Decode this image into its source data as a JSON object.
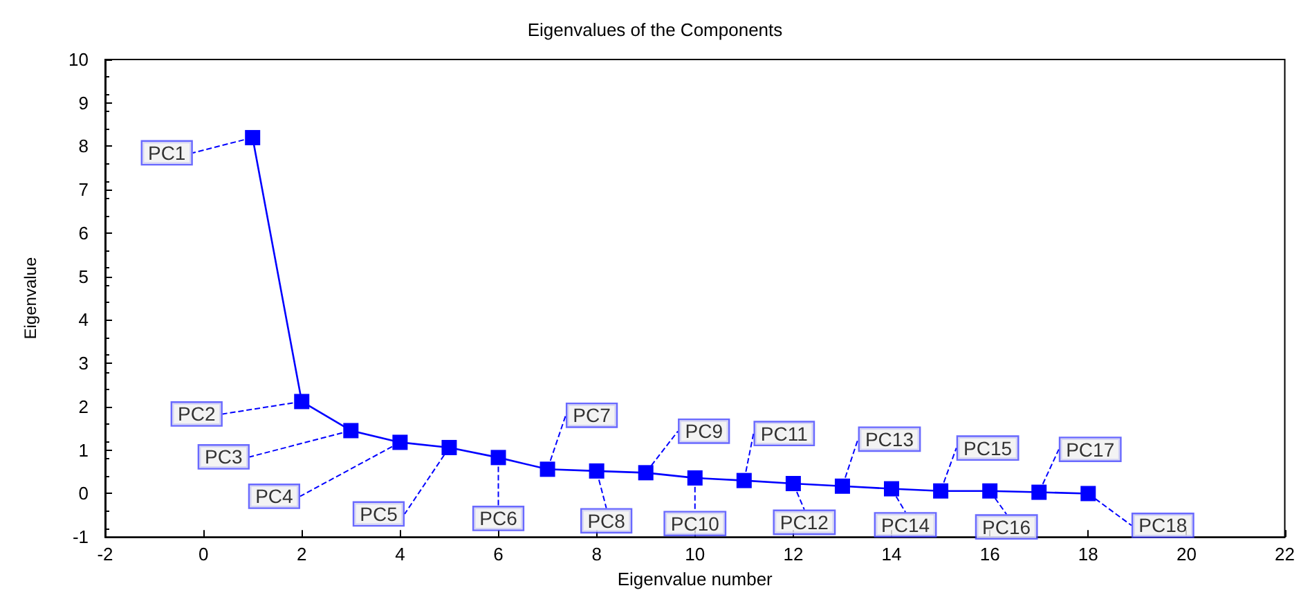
{
  "chart_data": {
    "type": "line",
    "title": "Eigenvalues of the Components",
    "xlabel": "Eigenvalue number",
    "ylabel": "Eigenvalue",
    "x": [
      1,
      2,
      3,
      4,
      5,
      6,
      7,
      8,
      9,
      10,
      11,
      12,
      13,
      14,
      15,
      16,
      17,
      18
    ],
    "series": [
      {
        "color": "#0000ff",
        "values": [
          8.2,
          2.12,
          1.45,
          1.18,
          1.06,
          0.83,
          0.56,
          0.52,
          0.48,
          0.36,
          0.3,
          0.23,
          0.17,
          0.11,
          0.06,
          0.06,
          0.03,
          0.0
        ]
      }
    ],
    "annotations": [
      {
        "text": "PC1",
        "x": 1,
        "y": 8.2
      },
      {
        "text": "PC2",
        "x": 2,
        "y": 2.12
      },
      {
        "text": "PC3",
        "x": 3,
        "y": 1.45
      },
      {
        "text": "PC4",
        "x": 4,
        "y": 1.18
      },
      {
        "text": "PC5",
        "x": 5,
        "y": 1.06
      },
      {
        "text": "PC6",
        "x": 6,
        "y": 0.83
      },
      {
        "text": "PC7",
        "x": 7,
        "y": 0.56
      },
      {
        "text": "PC8",
        "x": 8,
        "y": 0.52
      },
      {
        "text": "PC9",
        "x": 9,
        "y": 0.48
      },
      {
        "text": "PC10",
        "x": 10,
        "y": 0.36
      },
      {
        "text": "PC11",
        "x": 11,
        "y": 0.3
      },
      {
        "text": "PC12",
        "x": 12,
        "y": 0.23
      },
      {
        "text": "PC13",
        "x": 13,
        "y": 0.17
      },
      {
        "text": "PC14",
        "x": 14,
        "y": 0.11
      },
      {
        "text": "PC15",
        "x": 15,
        "y": 0.06
      },
      {
        "text": "PC16",
        "x": 16,
        "y": 0.06
      },
      {
        "text": "PC17",
        "x": 17,
        "y": 0.03
      },
      {
        "text": "PC18",
        "x": 18,
        "y": 0.0
      }
    ],
    "xlim": [
      -2,
      22
    ],
    "xticks": [
      -2,
      0,
      2,
      4,
      6,
      8,
      10,
      12,
      14,
      16,
      18,
      20,
      22
    ],
    "ylim": [
      -1,
      10
    ],
    "yticks": [
      -1,
      0,
      1,
      2,
      3,
      4,
      5,
      6,
      7,
      8,
      9,
      10
    ],
    "marker": "square",
    "line_style": "solid"
  }
}
